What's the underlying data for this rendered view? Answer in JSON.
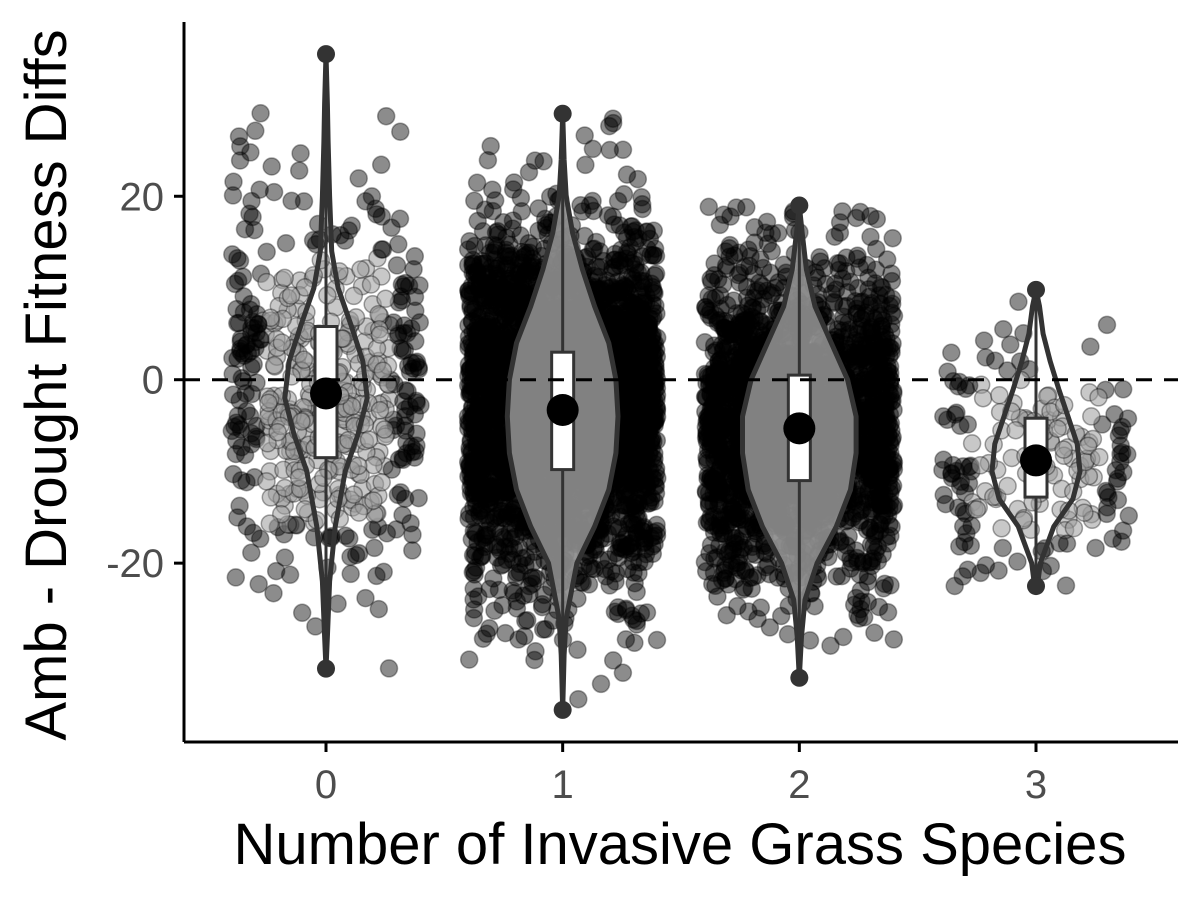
{
  "chart_data": {
    "type": "violin",
    "xlabel": "Number of Invasive Grass Species",
    "ylabel": "Amb - Drought Fitness Diffs",
    "categories": [
      "0",
      "1",
      "2",
      "3"
    ],
    "ylim": [
      -39.5,
      39
    ],
    "yticks": [
      -20,
      0,
      20
    ],
    "ytick_labels": [
      "-20",
      "0",
      "20"
    ],
    "reference_line": {
      "y": 0,
      "style": "dashed"
    },
    "grid": false,
    "legend": "none",
    "colors": {
      "violin_outline": "#333333",
      "point": "#000000",
      "point_light": "#9a9a9a",
      "box_fill": "#ffffff",
      "mean_marker": "#000000",
      "axis": "#000000"
    },
    "groups": [
      {
        "category": "0",
        "n_points": 520,
        "mean": -1.5,
        "box": {
          "q1": -8.5,
          "median": -1.0,
          "q3": 5.8
        },
        "range": [
          -31.5,
          35.5
        ],
        "violin_fill": "#ffffff",
        "outer_points_mid_light": true,
        "violin_profile": [
          [
            -31.5,
            0.0
          ],
          [
            -28,
            0.02
          ],
          [
            -22,
            0.05
          ],
          [
            -16,
            0.13
          ],
          [
            -10,
            0.27
          ],
          [
            -6,
            0.45
          ],
          [
            -2,
            0.58
          ],
          [
            2,
            0.52
          ],
          [
            6,
            0.35
          ],
          [
            10,
            0.17
          ],
          [
            14,
            0.08
          ],
          [
            20,
            0.05
          ],
          [
            26,
            0.03
          ],
          [
            30,
            0.02
          ],
          [
            35.5,
            0.0
          ]
        ]
      },
      {
        "category": "1",
        "n_points": 3200,
        "mean": -3.3,
        "box": {
          "q1": -9.8,
          "median": -2.5,
          "q3": 3.0
        },
        "range": [
          -36,
          29
        ],
        "violin_fill": "#8c8c8c",
        "outer_points_mid_light": false,
        "violin_profile": [
          [
            -36,
            0.0
          ],
          [
            -30,
            0.02
          ],
          [
            -26,
            0.05
          ],
          [
            -20,
            0.2
          ],
          [
            -16,
            0.45
          ],
          [
            -12,
            0.65
          ],
          [
            -8,
            0.75
          ],
          [
            -4,
            0.78
          ],
          [
            0,
            0.75
          ],
          [
            4,
            0.65
          ],
          [
            8,
            0.45
          ],
          [
            12,
            0.28
          ],
          [
            16,
            0.14
          ],
          [
            20,
            0.05
          ],
          [
            24,
            0.02
          ],
          [
            29,
            0.0
          ]
        ]
      },
      {
        "category": "2",
        "n_points": 2200,
        "mean": -5.3,
        "box": {
          "q1": -11.0,
          "median": -4.5,
          "q3": 0.5
        },
        "range": [
          -32.5,
          19
        ],
        "violin_fill": "#8c8c8c",
        "outer_points_mid_light": false,
        "violin_profile": [
          [
            -32.5,
            0.0
          ],
          [
            -28,
            0.03
          ],
          [
            -24,
            0.08
          ],
          [
            -20,
            0.25
          ],
          [
            -16,
            0.52
          ],
          [
            -12,
            0.72
          ],
          [
            -8,
            0.8
          ],
          [
            -4,
            0.8
          ],
          [
            0,
            0.68
          ],
          [
            4,
            0.45
          ],
          [
            8,
            0.22
          ],
          [
            12,
            0.1
          ],
          [
            16,
            0.04
          ],
          [
            19,
            0.0
          ]
        ]
      },
      {
        "category": "3",
        "n_points": 190,
        "mean": -8.8,
        "box": {
          "q1": -12.8,
          "median": -8.5,
          "q3": -4.2
        },
        "range": [
          -22.5,
          9.8
        ],
        "violin_fill": "#ffffff",
        "outer_points_mid_light": true,
        "violin_profile": [
          [
            -22.5,
            0.02
          ],
          [
            -20,
            0.06
          ],
          [
            -16,
            0.25
          ],
          [
            -13,
            0.52
          ],
          [
            -10,
            0.62
          ],
          [
            -7,
            0.58
          ],
          [
            -4,
            0.45
          ],
          [
            -1,
            0.32
          ],
          [
            2,
            0.2
          ],
          [
            5,
            0.1
          ],
          [
            8,
            0.05
          ],
          [
            9.8,
            0.0
          ]
        ]
      }
    ]
  }
}
